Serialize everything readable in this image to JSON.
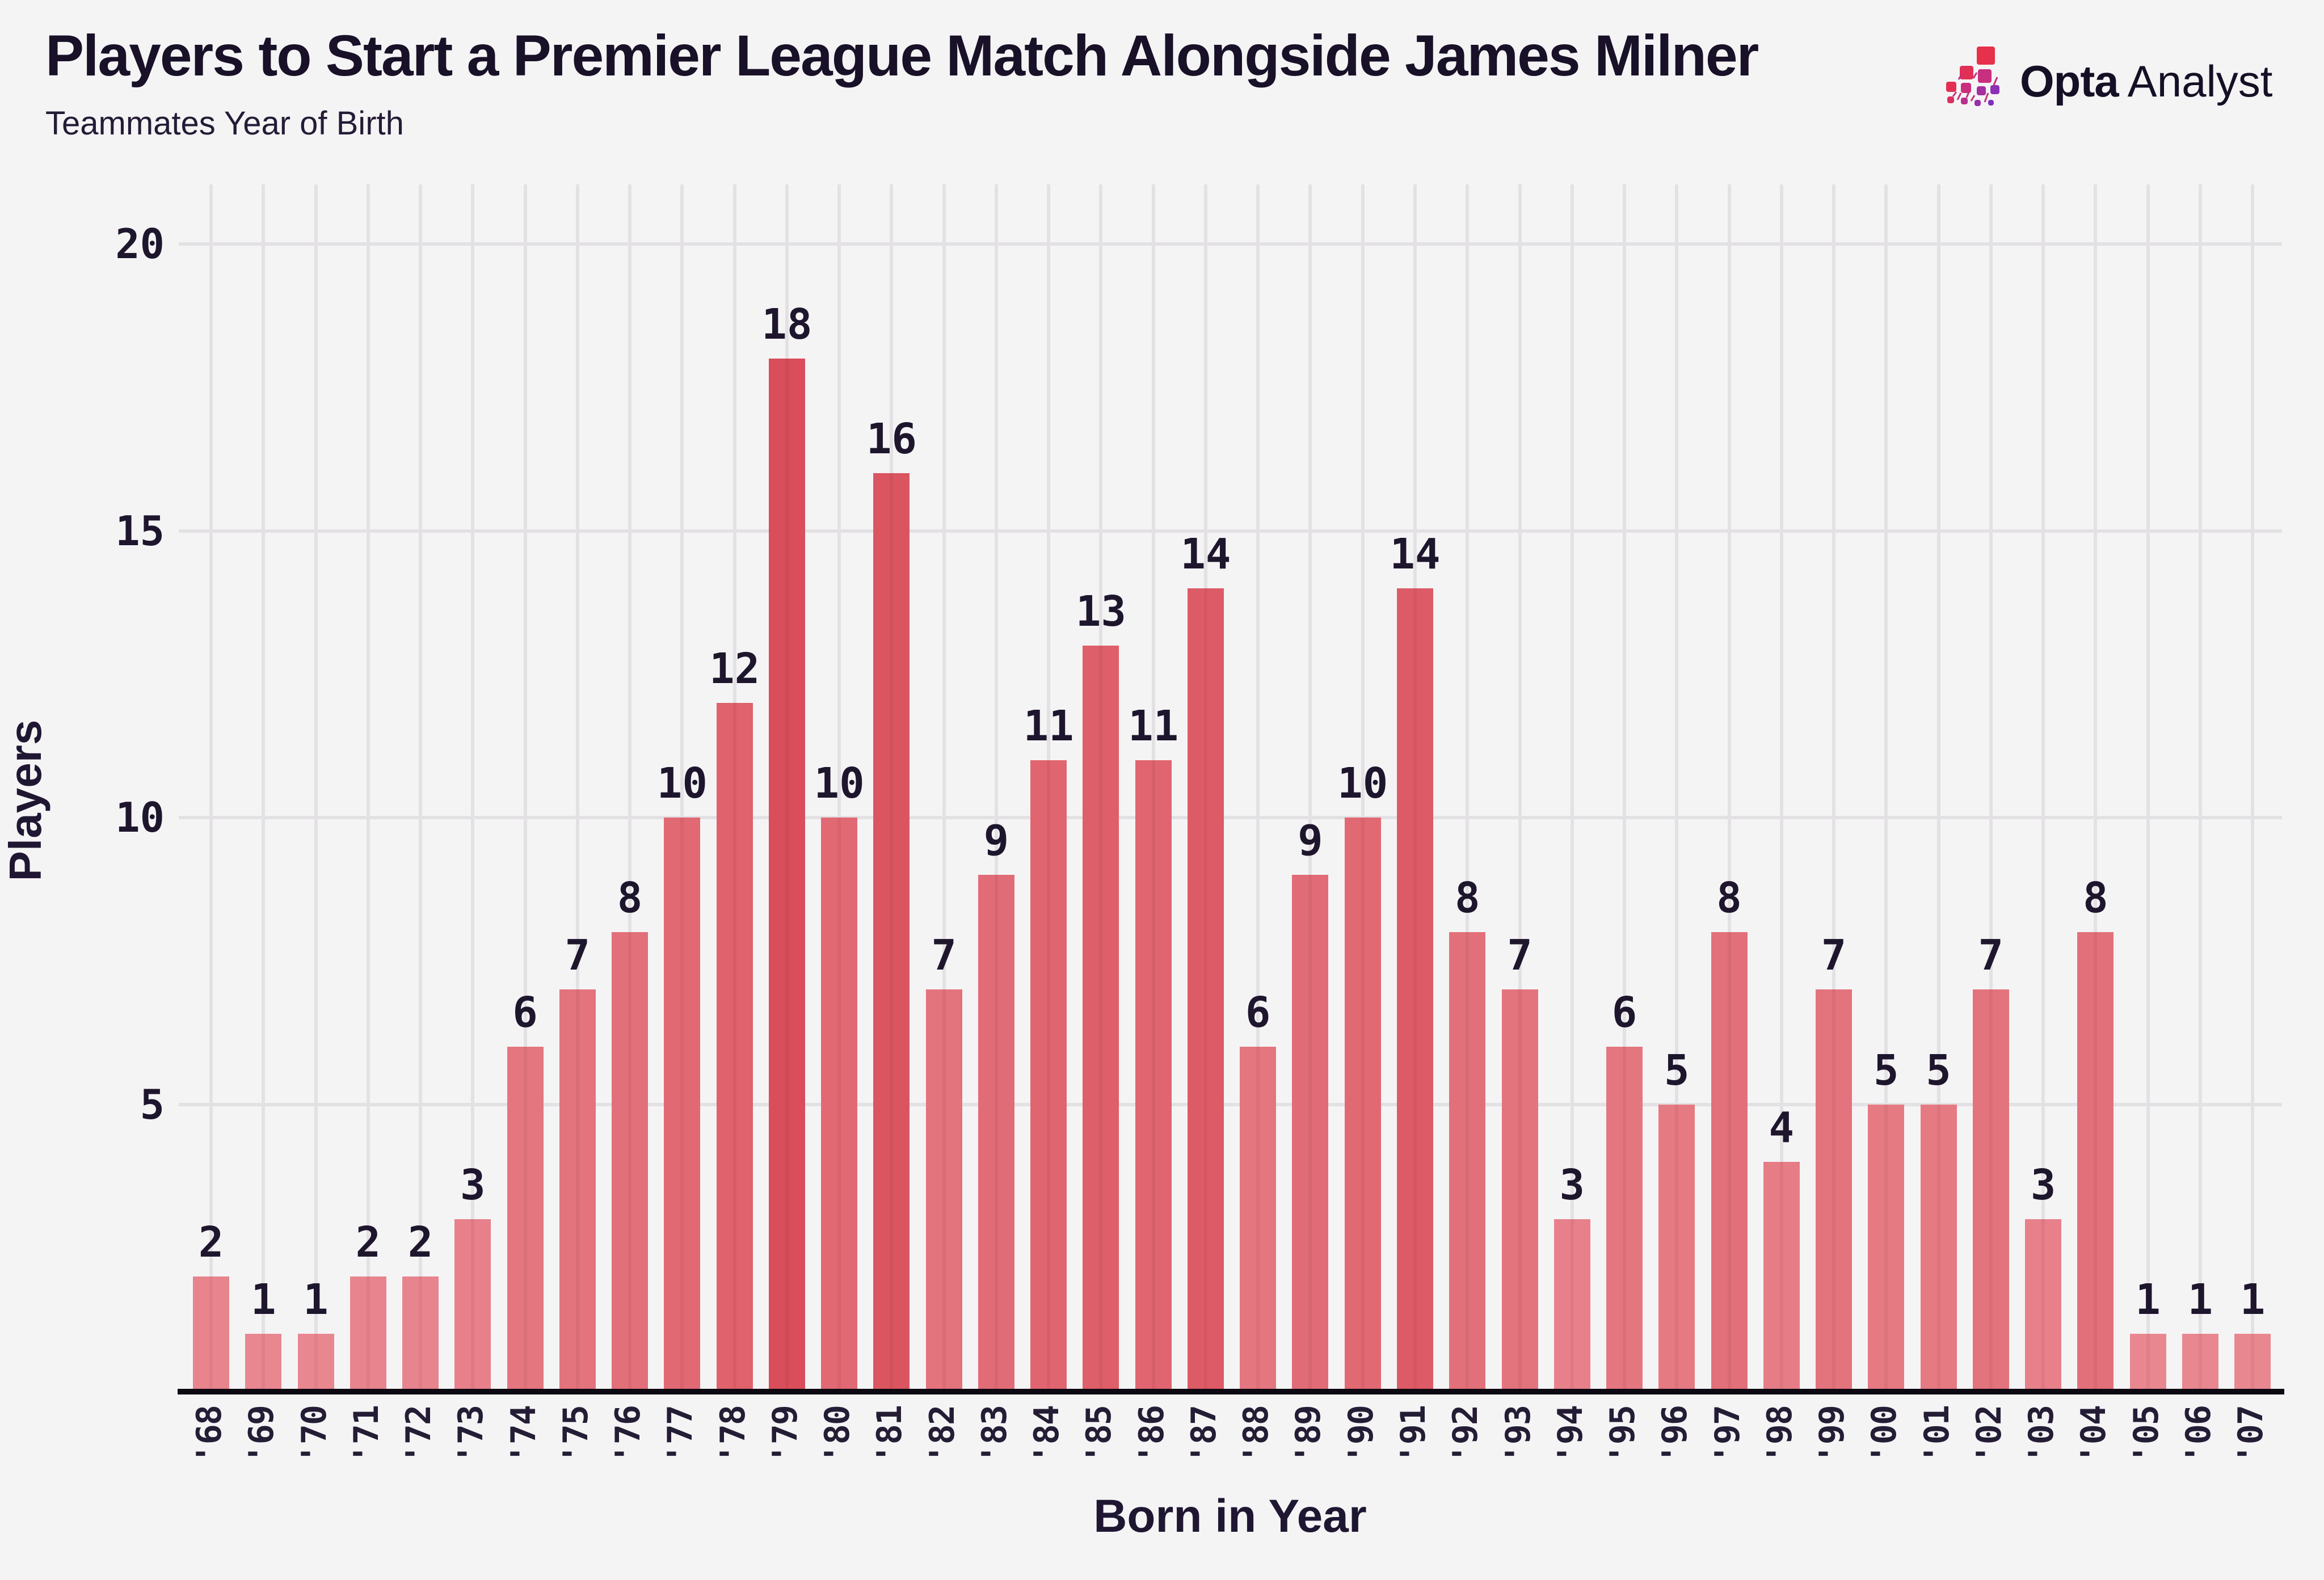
{
  "header": {
    "title": "Players to Start a Premier League Match Alongside James Milner",
    "subtitle": "Teammates Year of Birth"
  },
  "logo": {
    "brand_bold": "Opta",
    "brand_light": "Analyst",
    "mark_colors": [
      "#E73049",
      "#E13055",
      "#C72F7F",
      "#E33052",
      "#C92F7D",
      "#A42F9E",
      "#8C2FB7",
      "#D93060",
      "#B82F8E",
      "#9A2FA9",
      "#7E2EC0"
    ]
  },
  "chart_data": {
    "type": "bar",
    "title": "Players to Start a Premier League Match Alongside James Milner",
    "subtitle": "Teammates Year of Birth",
    "categories": [
      "'68",
      "'69",
      "'70",
      "'71",
      "'72",
      "'73",
      "'74",
      "'75",
      "'76",
      "'77",
      "'78",
      "'79",
      "'80",
      "'81",
      "'82",
      "'83",
      "'84",
      "'85",
      "'86",
      "'87",
      "'88",
      "'89",
      "'90",
      "'91",
      "'92",
      "'93",
      "'94",
      "'95",
      "'96",
      "'97",
      "'98",
      "'99",
      "'00",
      "'01",
      "'02",
      "'03",
      "'04",
      "'05",
      "'06",
      "'07"
    ],
    "values": [
      2,
      1,
      1,
      2,
      2,
      3,
      6,
      7,
      8,
      10,
      12,
      18,
      10,
      16,
      7,
      9,
      11,
      13,
      11,
      14,
      6,
      9,
      10,
      14,
      8,
      7,
      3,
      6,
      5,
      8,
      4,
      7,
      5,
      5,
      7,
      3,
      8,
      1,
      1,
      1
    ],
    "xlabel": "Born in Year",
    "ylabel": "Players",
    "ylim": [
      0,
      20
    ],
    "yticks": [
      5,
      10,
      15,
      20
    ],
    "grid": "on",
    "legend": "none",
    "value_labels": "above bars",
    "bar_color_low": "#E98790",
    "bar_color_high": "#D94E5A"
  },
  "colors": {
    "background": "#F5F4F5",
    "gridline": "#E3E1E4",
    "axis_line": "#0D0913",
    "text_dark": "#1E162D"
  }
}
